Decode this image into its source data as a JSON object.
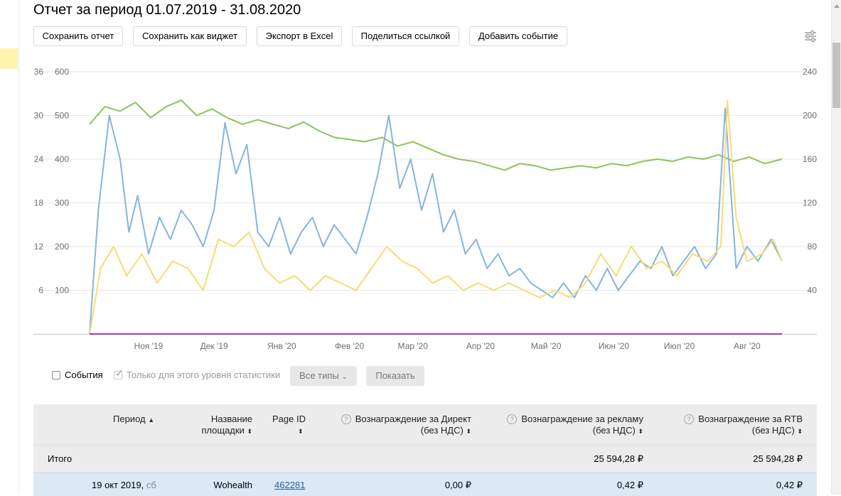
{
  "report": {
    "title": "Отчет за период 01.07.2019 - 31.08.2020"
  },
  "toolbar": {
    "save_report": "Сохранить отчет",
    "save_widget": "Сохранить как виджет",
    "export_excel": "Экспорт в Excel",
    "share_link": "Поделиться ссылкой",
    "add_event": "Добавить событие"
  },
  "icons": {
    "settings": "sliders-icon"
  },
  "colors": {
    "green": "#8cc45a",
    "blue": "#86b4de",
    "yellow": "#f5dc74",
    "purple": "#a03cb8",
    "grid": "#e5e5e5"
  },
  "chart_data": {
    "type": "line",
    "xlabel": "",
    "ylabel": "",
    "grid": true,
    "x_ticks": [
      "Ноя '19",
      "Дек '19",
      "Янв '20",
      "Фев '20",
      "Мар '20",
      "Апр '20",
      "Май '20",
      "Июн '20",
      "Июл '20",
      "Авг '20"
    ],
    "left_axis_1": {
      "ticks": [
        "6",
        "12",
        "18",
        "24",
        "30",
        "36"
      ],
      "ylim": [
        0,
        36
      ]
    },
    "left_axis_2": {
      "ticks": [
        "100",
        "200",
        "300",
        "400",
        "500",
        "600"
      ],
      "ylim": [
        0,
        600
      ]
    },
    "right_axis": {
      "ticks": [
        "40",
        "80",
        "120",
        "160",
        "200",
        "240"
      ],
      "ylim": [
        0,
        240
      ]
    },
    "x_range": [
      "2019-10-19",
      "2020-08-31"
    ],
    "series": [
      {
        "color": "#8cc45a",
        "axis": "left_2",
        "points": [
          [
            "2019-10-19",
            480
          ],
          [
            "2019-10-26",
            520
          ],
          [
            "2019-11-02",
            510
          ],
          [
            "2019-11-09",
            530
          ],
          [
            "2019-11-16",
            495
          ],
          [
            "2019-11-23",
            520
          ],
          [
            "2019-11-30",
            535
          ],
          [
            "2019-12-07",
            500
          ],
          [
            "2019-12-14",
            515
          ],
          [
            "2019-12-21",
            495
          ],
          [
            "2019-12-28",
            480
          ],
          [
            "2020-01-04",
            490
          ],
          [
            "2020-01-11",
            480
          ],
          [
            "2020-01-18",
            470
          ],
          [
            "2020-01-25",
            485
          ],
          [
            "2020-02-01",
            465
          ],
          [
            "2020-02-08",
            450
          ],
          [
            "2020-02-15",
            445
          ],
          [
            "2020-02-22",
            440
          ],
          [
            "2020-03-01",
            450
          ],
          [
            "2020-03-08",
            430
          ],
          [
            "2020-03-15",
            440
          ],
          [
            "2020-03-22",
            425
          ],
          [
            "2020-03-29",
            410
          ],
          [
            "2020-04-05",
            400
          ],
          [
            "2020-04-12",
            395
          ],
          [
            "2020-04-19",
            385
          ],
          [
            "2020-04-26",
            375
          ],
          [
            "2020-05-03",
            390
          ],
          [
            "2020-05-10",
            385
          ],
          [
            "2020-05-17",
            375
          ],
          [
            "2020-05-24",
            380
          ],
          [
            "2020-05-31",
            385
          ],
          [
            "2020-06-07",
            380
          ],
          [
            "2020-06-14",
            390
          ],
          [
            "2020-06-21",
            385
          ],
          [
            "2020-06-28",
            395
          ],
          [
            "2020-07-05",
            400
          ],
          [
            "2020-07-12",
            395
          ],
          [
            "2020-07-19",
            405
          ],
          [
            "2020-07-26",
            400
          ],
          [
            "2020-08-02",
            410
          ],
          [
            "2020-08-09",
            395
          ],
          [
            "2020-08-16",
            405
          ],
          [
            "2020-08-23",
            390
          ],
          [
            "2020-08-31",
            400
          ]
        ]
      },
      {
        "color": "#86b4de",
        "axis": "left_1",
        "points": [
          [
            "2019-10-19",
            0
          ],
          [
            "2019-10-23",
            17
          ],
          [
            "2019-10-28",
            30
          ],
          [
            "2019-11-02",
            24
          ],
          [
            "2019-11-06",
            14
          ],
          [
            "2019-11-10",
            19
          ],
          [
            "2019-11-15",
            11
          ],
          [
            "2019-11-20",
            16
          ],
          [
            "2019-11-25",
            13
          ],
          [
            "2019-11-30",
            17
          ],
          [
            "2019-12-05",
            15
          ],
          [
            "2019-12-10",
            12
          ],
          [
            "2019-12-15",
            17
          ],
          [
            "2019-12-20",
            29
          ],
          [
            "2019-12-25",
            22
          ],
          [
            "2019-12-30",
            26
          ],
          [
            "2020-01-04",
            14
          ],
          [
            "2020-01-09",
            12
          ],
          [
            "2020-01-14",
            16
          ],
          [
            "2020-01-19",
            11
          ],
          [
            "2020-01-24",
            14
          ],
          [
            "2020-01-29",
            16
          ],
          [
            "2020-02-03",
            12
          ],
          [
            "2020-02-08",
            15
          ],
          [
            "2020-02-13",
            13
          ],
          [
            "2020-02-18",
            11
          ],
          [
            "2020-02-23",
            16
          ],
          [
            "2020-02-28",
            22
          ],
          [
            "2020-03-04",
            30
          ],
          [
            "2020-03-09",
            20
          ],
          [
            "2020-03-14",
            24
          ],
          [
            "2020-03-19",
            17
          ],
          [
            "2020-03-24",
            22
          ],
          [
            "2020-03-29",
            14
          ],
          [
            "2020-04-03",
            17
          ],
          [
            "2020-04-08",
            11
          ],
          [
            "2020-04-13",
            13
          ],
          [
            "2020-04-18",
            9
          ],
          [
            "2020-04-23",
            11
          ],
          [
            "2020-04-28",
            8
          ],
          [
            "2020-05-03",
            9
          ],
          [
            "2020-05-08",
            7
          ],
          [
            "2020-05-13",
            6
          ],
          [
            "2020-05-18",
            5
          ],
          [
            "2020-05-23",
            7
          ],
          [
            "2020-05-28",
            5
          ],
          [
            "2020-06-02",
            8
          ],
          [
            "2020-06-07",
            6
          ],
          [
            "2020-06-12",
            9
          ],
          [
            "2020-06-17",
            6
          ],
          [
            "2020-06-22",
            8
          ],
          [
            "2020-06-27",
            10
          ],
          [
            "2020-07-02",
            9
          ],
          [
            "2020-07-07",
            12
          ],
          [
            "2020-07-12",
            8
          ],
          [
            "2020-07-17",
            10
          ],
          [
            "2020-07-22",
            12
          ],
          [
            "2020-07-27",
            9
          ],
          [
            "2020-08-01",
            11
          ],
          [
            "2020-08-05",
            31
          ],
          [
            "2020-08-10",
            9
          ],
          [
            "2020-08-15",
            12
          ],
          [
            "2020-08-20",
            10
          ],
          [
            "2020-08-26",
            13
          ],
          [
            "2020-08-31",
            10
          ]
        ]
      },
      {
        "color": "#f5dc74",
        "axis": "left_1",
        "points": [
          [
            "2019-10-19",
            0
          ],
          [
            "2019-10-24",
            9
          ],
          [
            "2019-10-30",
            12
          ],
          [
            "2019-11-05",
            8
          ],
          [
            "2019-11-12",
            11
          ],
          [
            "2019-11-19",
            7
          ],
          [
            "2019-11-26",
            10
          ],
          [
            "2019-12-03",
            9
          ],
          [
            "2019-12-10",
            6
          ],
          [
            "2019-12-17",
            13
          ],
          [
            "2019-12-24",
            12
          ],
          [
            "2019-12-31",
            14
          ],
          [
            "2020-01-07",
            9
          ],
          [
            "2020-01-14",
            7
          ],
          [
            "2020-01-21",
            8
          ],
          [
            "2020-01-28",
            6
          ],
          [
            "2020-02-04",
            8
          ],
          [
            "2020-02-11",
            7
          ],
          [
            "2020-02-18",
            6
          ],
          [
            "2020-02-25",
            9
          ],
          [
            "2020-03-03",
            12
          ],
          [
            "2020-03-10",
            10
          ],
          [
            "2020-03-17",
            9
          ],
          [
            "2020-03-24",
            7
          ],
          [
            "2020-03-31",
            8
          ],
          [
            "2020-04-07",
            6
          ],
          [
            "2020-04-14",
            7
          ],
          [
            "2020-04-21",
            6
          ],
          [
            "2020-04-28",
            7
          ],
          [
            "2020-05-05",
            6
          ],
          [
            "2020-05-12",
            5
          ],
          [
            "2020-05-19",
            6
          ],
          [
            "2020-05-26",
            5
          ],
          [
            "2020-06-02",
            7
          ],
          [
            "2020-06-09",
            11
          ],
          [
            "2020-06-16",
            8
          ],
          [
            "2020-06-23",
            12
          ],
          [
            "2020-06-30",
            9
          ],
          [
            "2020-07-07",
            10
          ],
          [
            "2020-07-14",
            8
          ],
          [
            "2020-07-21",
            11
          ],
          [
            "2020-07-28",
            10
          ],
          [
            "2020-08-03",
            12
          ],
          [
            "2020-08-06",
            32
          ],
          [
            "2020-08-10",
            16
          ],
          [
            "2020-08-15",
            10
          ],
          [
            "2020-08-22",
            11
          ],
          [
            "2020-08-27",
            13
          ],
          [
            "2020-08-31",
            10
          ]
        ]
      },
      {
        "color": "#a03cb8",
        "axis": "left_1",
        "points": [
          [
            "2019-10-19",
            0
          ],
          [
            "2020-08-31",
            0
          ]
        ]
      }
    ]
  },
  "controls": {
    "events_label": "События",
    "level_only_label": "Только для этого уровня статистики",
    "types_dropdown": "Все типы",
    "show_button": "Показать"
  },
  "table": {
    "headers": {
      "period": "Период",
      "site_name_1": "Название",
      "site_name_2": "площадки",
      "page_id": "Page ID",
      "direct_reward_1": "Вознаграждение за Директ",
      "direct_reward_2": "(без НДС)",
      "ads_reward_1": "Вознаграждение за рекламу",
      "ads_reward_2": "(без НДС)",
      "rtb_reward_1": "Вознаграждение за RTB",
      "rtb_reward_2": "(без НДС)"
    },
    "total": {
      "label": "Итого",
      "ads_reward": "25 594,28 ₽",
      "rtb_reward": "25 594,28 ₽"
    },
    "rows": [
      {
        "date": "19 окт 2019,",
        "weekday": "сб",
        "site": "Wohealth",
        "page_id": "462281",
        "direct_reward": "0,00 ₽",
        "ads_reward": "0,42 ₽",
        "rtb_reward": "0,42 ₽"
      }
    ]
  }
}
